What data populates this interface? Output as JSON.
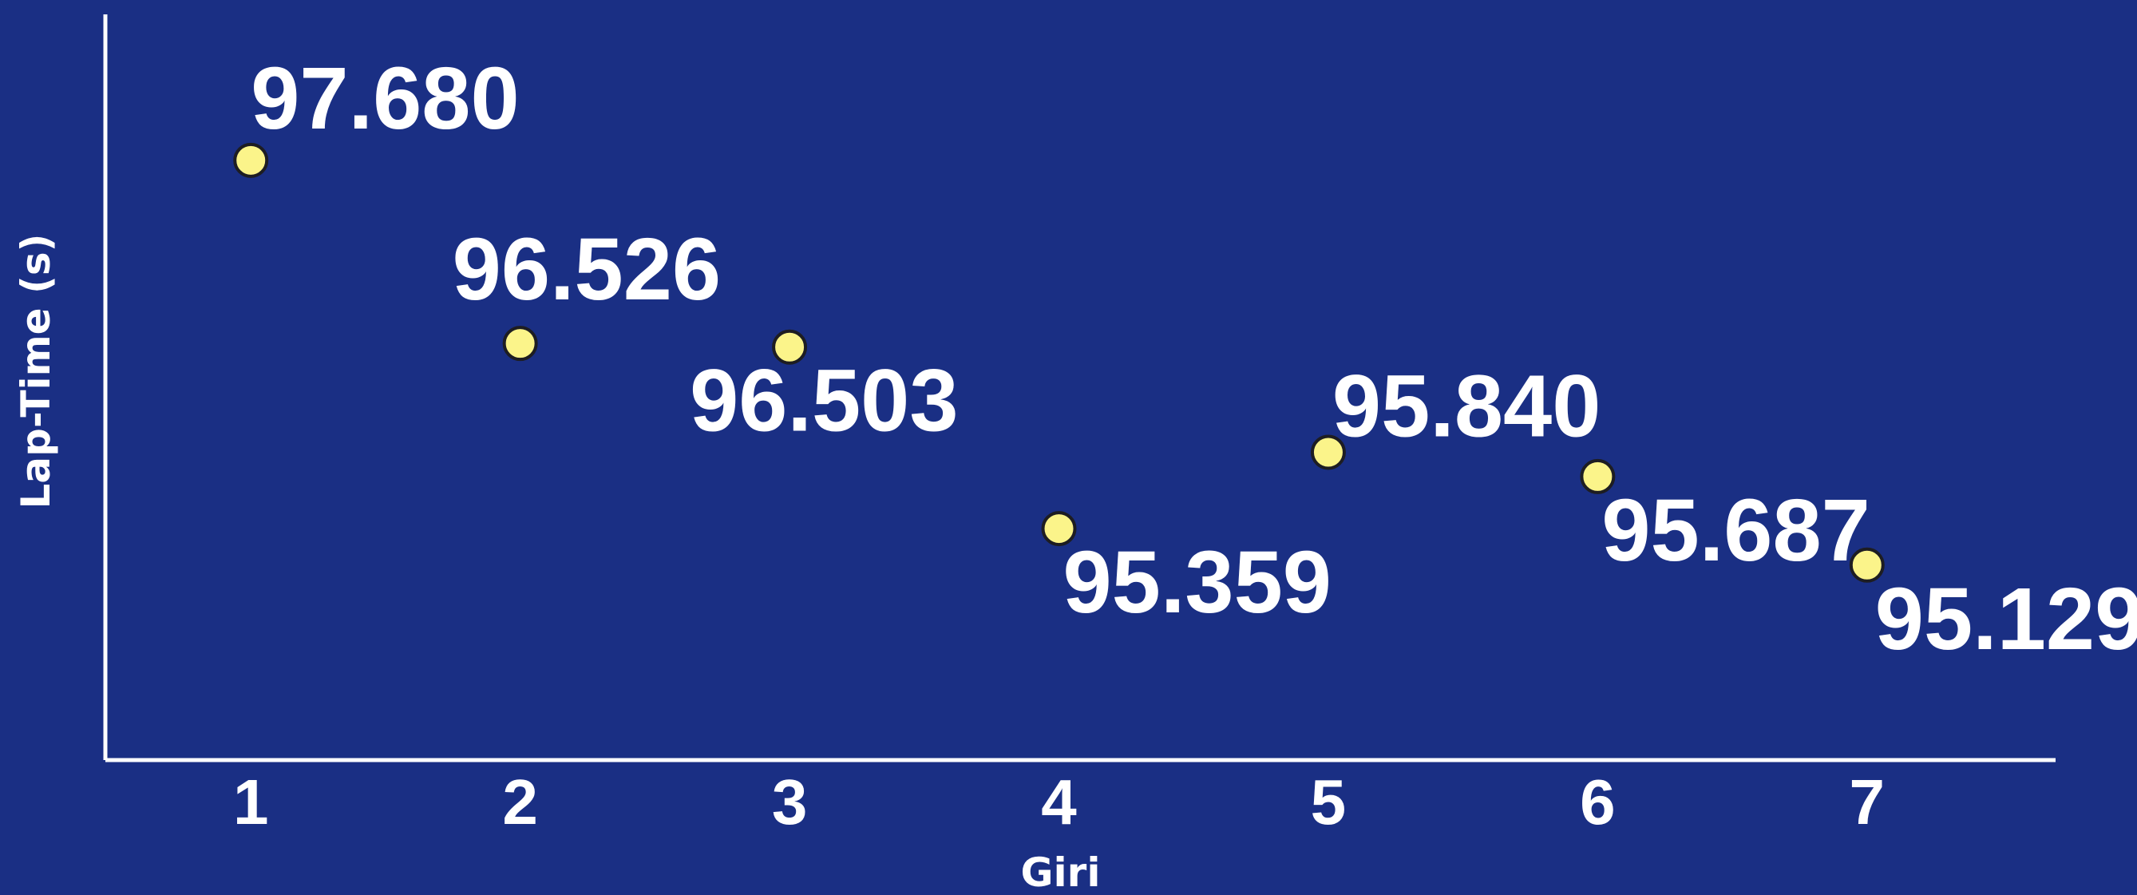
{
  "chart_data": {
    "type": "scatter",
    "title": "",
    "xlabel": "Giri",
    "ylabel": "Lap-Time (s)",
    "x": [
      1,
      2,
      3,
      4,
      5,
      6,
      7
    ],
    "categories": [
      "1",
      "2",
      "3",
      "4",
      "5",
      "6",
      "7"
    ],
    "values": [
      97.68,
      96.526,
      96.503,
      95.359,
      95.84,
      95.687,
      95.129
    ],
    "value_labels": [
      "97.680",
      "96.526",
      "96.503",
      "95.359",
      "95.840",
      "95.687",
      "95.129"
    ],
    "xlim": [
      0.46,
      7.7
    ],
    "ylim": [
      93.9,
      98.6
    ],
    "grid": false,
    "legend": "none",
    "colors": {
      "background": "#1a2f84",
      "point": "#fbf48a",
      "point_outline": "#1d1d22",
      "text": "#ffffff"
    }
  }
}
